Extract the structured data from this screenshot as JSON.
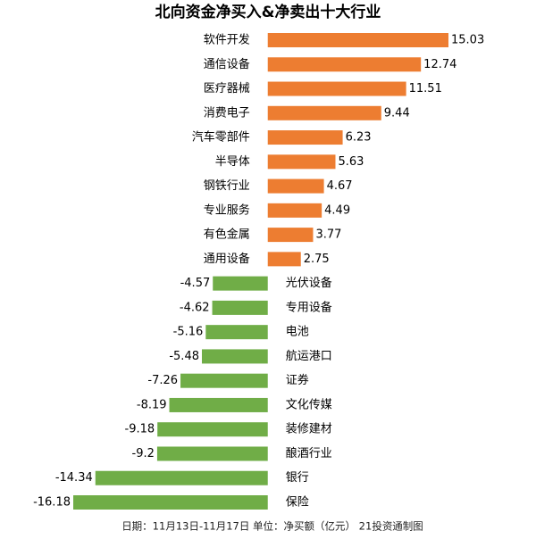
{
  "chart_data": {
    "type": "bar",
    "orientation": "horizontal",
    "title": "北向资金净买入&净卖出十大行业",
    "categories": [
      "软件开发",
      "通信设备",
      "医疗器械",
      "消费电子",
      "汽车零部件",
      "半导体",
      "钢铁行业",
      "专业服务",
      "有色金属",
      "通用设备",
      "光伏设备",
      "专用设备",
      "电池",
      "航运港口",
      "证券",
      "文化传媒",
      "装修建材",
      "酿酒行业",
      "银行",
      "保险"
    ],
    "values": [
      15.03,
      12.74,
      11.51,
      9.44,
      6.23,
      5.63,
      4.67,
      4.49,
      3.77,
      2.75,
      -4.57,
      -4.62,
      -5.16,
      -5.48,
      -7.26,
      -8.19,
      -9.18,
      -9.2,
      -14.34,
      -16.18
    ],
    "positive_color": "#ed7d31",
    "negative_color": "#70ad47",
    "note": "日期：11月13日-11月17日  单位：净买额（亿元）  21投资通制图"
  }
}
